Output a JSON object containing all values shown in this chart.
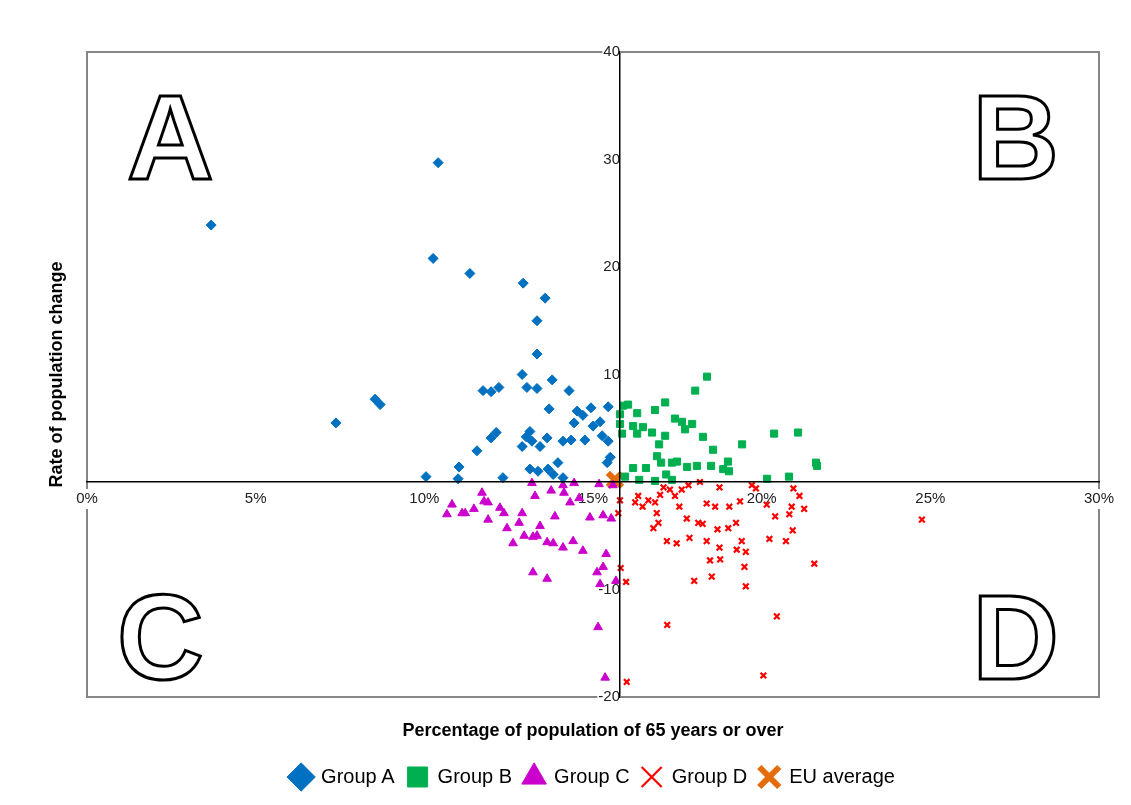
{
  "chart_data": {
    "type": "scatter",
    "xlabel": "Percentage of population of 65 years or over",
    "ylabel": "Rate of population change",
    "xlim": [
      0,
      30
    ],
    "xticks": [
      {
        "value": 0,
        "label": "0%"
      },
      {
        "value": 5,
        "label": "5%"
      },
      {
        "value": 10,
        "label": "10%"
      },
      {
        "value": 15,
        "label": "15%"
      },
      {
        "value": 20,
        "label": "20%"
      },
      {
        "value": 25,
        "label": "25%"
      },
      {
        "value": 30,
        "label": "30%"
      }
    ],
    "ylim": [
      -20,
      40
    ],
    "yticks": [
      -20,
      -10,
      0,
      10,
      20,
      30,
      40
    ],
    "grid": false,
    "legend": "bottom",
    "annotations": [
      "A",
      "B",
      "C",
      "D"
    ],
    "series": [
      {
        "name": "Group A",
        "color": "#0070c0",
        "marker": "diamond",
        "x": [
          10.05,
          11.03,
          11.0,
          12.33,
          11.56,
          11.98,
          12.13,
          11.74,
          11.98,
          12.21,
          12.9,
          13.04,
          13.34,
          13.79,
          14.29,
          13.7,
          14.53,
          14.7,
          14.94,
          15.45,
          14.44,
          15.0,
          15.21,
          15.27,
          15.45,
          14.76,
          14.11,
          14.35,
          13.64,
          13.43,
          13.13,
          13.02,
          12.9,
          13.19,
          15.51,
          15.42,
          13.13,
          13.37,
          13.67,
          13.82,
          13.96,
          14.11,
          3.68,
          10.41,
          10.26,
          11.35,
          12.93,
          13.58,
          13.34,
          13.34,
          7.38,
          8.54,
          8.69
        ],
        "values": [
          0.5,
          1.4,
          0.3,
          0.4,
          2.9,
          4.1,
          4.6,
          8.5,
          8.4,
          8.8,
          10.0,
          8.8,
          8.7,
          9.5,
          8.5,
          6.8,
          6.6,
          6.2,
          6.9,
          7.0,
          5.5,
          5.2,
          5.6,
          4.3,
          3.8,
          3.9,
          3.8,
          3.9,
          4.1,
          3.3,
          4.7,
          4.2,
          3.3,
          3.8,
          2.3,
          1.8,
          1.2,
          1.0,
          1.2,
          0.7,
          1.8,
          0.4,
          23.9,
          29.7,
          20.8,
          19.4,
          18.5,
          17.1,
          15.0,
          11.9,
          5.5,
          7.7,
          7.2
        ]
      },
      {
        "name": "Group B",
        "color": "#00b050",
        "marker": "square",
        "x": [
          18.38,
          18.03,
          16.04,
          15.89,
          16.31,
          17.14,
          16.84,
          15.8,
          15.8,
          15.86,
          16.19,
          16.31,
          16.48,
          16.75,
          17.43,
          17.64,
          17.94,
          17.73,
          17.14,
          18.26,
          16.96,
          18.56,
          19.42,
          20.37,
          21.08,
          16.9,
          17.02,
          17.34,
          17.49,
          17.79,
          18.08,
          18.5,
          19.0,
          18.86,
          19.03,
          21.61,
          21.64,
          16.19,
          16.57,
          15.95,
          16.37,
          16.84,
          17.17,
          17.34,
          20.16,
          20.81
        ],
        "values": [
          9.8,
          8.5,
          7.2,
          7.1,
          6.4,
          7.4,
          6.7,
          6.3,
          5.4,
          4.5,
          5.2,
          4.5,
          5.1,
          4.6,
          5.9,
          5.6,
          5.4,
          4.9,
          4.3,
          4.2,
          3.5,
          3.0,
          3.5,
          4.5,
          4.6,
          2.4,
          1.8,
          1.8,
          1.9,
          1.4,
          1.5,
          1.5,
          1.9,
          1.2,
          1.0,
          1.8,
          1.5,
          1.3,
          1.3,
          0.5,
          0.2,
          0.1,
          0.7,
          0.2,
          0.3,
          0.5
        ]
      },
      {
        "name": "Group C",
        "color": "#cc00cc",
        "marker": "triangle",
        "x": [
          13.19,
          14.11,
          14.44,
          15.18,
          15.59,
          11.71,
          11.77,
          11.89,
          10.82,
          10.67,
          11.12,
          11.21,
          11.47,
          12.24,
          12.36,
          11.89,
          12.9,
          12.81,
          12.45,
          13.28,
          13.76,
          14.14,
          14.32,
          14.59,
          13.87,
          14.91,
          15.3,
          15.54,
          13.43,
          12.96,
          12.63,
          13.22,
          13.34,
          13.64,
          13.82,
          14.11,
          14.41,
          14.7,
          15.39,
          15.12,
          15.3,
          15.21,
          15.68,
          13.22,
          13.64,
          15.15,
          15.36
        ],
        "values": [
          -0.1,
          -0.3,
          -0.1,
          -0.2,
          -0.3,
          -1.0,
          -1.8,
          -1.9,
          -2.1,
          -3.0,
          -2.9,
          -2.9,
          -2.5,
          -2.4,
          -2.9,
          -3.5,
          -2.9,
          -3.8,
          -4.3,
          -1.3,
          -0.8,
          -1.0,
          -1.9,
          -1.5,
          -3.2,
          -3.3,
          -3.1,
          -3.4,
          -4.1,
          -5.0,
          -5.7,
          -5.1,
          -5.0,
          -5.6,
          -5.7,
          -6.1,
          -5.5,
          -6.4,
          -6.7,
          -8.4,
          -7.9,
          -9.5,
          -9.2,
          -8.4,
          -9.0,
          -13.5,
          -18.2
        ]
      },
      {
        "name": "Group D",
        "color": "#ff0000",
        "marker": "cross",
        "x": [
          15.8,
          15.75,
          18.17,
          18.75,
          19.71,
          19.83,
          20.94,
          21.12,
          20.15,
          20.89,
          21.26,
          20.4,
          20.82,
          20.92,
          20.23,
          20.72,
          21.56,
          19.36,
          19.04,
          18.62,
          18.37,
          17.56,
          17.09,
          17.28,
          17.43,
          17.63,
          17.83,
          16.99,
          16.84,
          16.64,
          16.34,
          16.25,
          16.47,
          16.89,
          16.94,
          16.79,
          17.78,
          18.12,
          18.25,
          18.69,
          19.01,
          19.24,
          17.19,
          17.48,
          17.86,
          18.37,
          18.75,
          19.26,
          19.41,
          19.53,
          18.47,
          18.77,
          19.49,
          15.82,
          15.98,
          18.0,
          18.52,
          19.53,
          20.45,
          17.2,
          20.05,
          16.0,
          24.75
        ],
        "values": [
          -1.7,
          -2.9,
          0.0,
          -0.5,
          -0.3,
          -0.6,
          -0.6,
          -1.3,
          -2.1,
          -2.3,
          -2.5,
          -3.2,
          -3.0,
          -4.5,
          -5.3,
          -5.5,
          -7.6,
          -1.8,
          -2.3,
          -2.3,
          -2.0,
          -2.3,
          -0.5,
          -0.7,
          -1.3,
          -0.7,
          -0.3,
          -1.2,
          -1.9,
          -1.7,
          -1.3,
          -1.9,
          -2.3,
          -2.9,
          -3.8,
          -4.3,
          -3.4,
          -3.8,
          -3.9,
          -4.4,
          -4.3,
          -3.8,
          -5.5,
          -5.7,
          -5.2,
          -5.5,
          -6.1,
          -6.3,
          -5.5,
          -6.5,
          -7.3,
          -7.2,
          -7.9,
          -8.0,
          -9.3,
          -9.2,
          -8.8,
          -9.7,
          -12.5,
          -13.3,
          -18.0,
          -18.6,
          -3.5
        ]
      },
      {
        "name": "EU average",
        "color": "#e46c0a",
        "marker": "cross",
        "x": [
          15.65
        ],
        "values": [
          0.2
        ]
      }
    ]
  }
}
